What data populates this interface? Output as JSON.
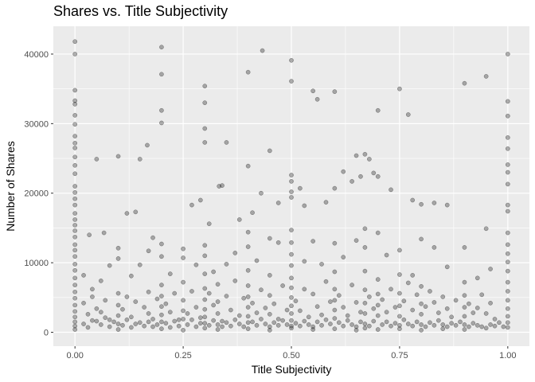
{
  "chart_data": {
    "type": "scatter",
    "title": "Shares vs. Title Subjectivity",
    "xlabel": "Title Subjectivity",
    "ylabel": "Number of Shares",
    "xlim": [
      -0.05,
      1.05
    ],
    "ylim": [
      -2000,
      44000
    ],
    "x_ticks": [
      0,
      0.25,
      0.5,
      0.75,
      1
    ],
    "x_tick_labels": [
      "0.00",
      "0.25",
      "0.50",
      "0.75",
      "1.00"
    ],
    "y_ticks": [
      0,
      10000,
      20000,
      30000,
      40000
    ],
    "y_tick_labels": [
      "0",
      "10000",
      "20000",
      "30000",
      "40000"
    ],
    "grid": true,
    "point_color": "#000000",
    "point_opacity": 0.3,
    "panel_color": "#ebebeb",
    "grid_color": "#ffffff",
    "points": [
      [
        0,
        41800
      ],
      [
        0,
        40000
      ],
      [
        0,
        34800
      ],
      [
        0,
        33300
      ],
      [
        0,
        32800
      ],
      [
        0,
        31200
      ],
      [
        0,
        29900
      ],
      [
        0,
        28200
      ],
      [
        0,
        27200
      ],
      [
        0,
        26500
      ],
      [
        0,
        25200
      ],
      [
        0,
        24000
      ],
      [
        0,
        22800
      ],
      [
        0,
        21000
      ],
      [
        0,
        20100
      ],
      [
        0,
        19200
      ],
      [
        0,
        18300
      ],
      [
        0,
        17100
      ],
      [
        0,
        16200
      ],
      [
        0,
        15400
      ],
      [
        0,
        14600
      ],
      [
        0,
        13700
      ],
      [
        0,
        12600
      ],
      [
        0,
        11800
      ],
      [
        0,
        10900
      ],
      [
        0,
        9800
      ],
      [
        0,
        8900
      ],
      [
        0,
        7800
      ],
      [
        0,
        6800
      ],
      [
        0,
        5800
      ],
      [
        0,
        4900
      ],
      [
        0,
        3900
      ],
      [
        0,
        3000
      ],
      [
        0,
        2200
      ],
      [
        0,
        1500
      ],
      [
        0,
        900
      ],
      [
        0,
        400
      ],
      [
        0.05,
        24900
      ],
      [
        0.1,
        25300
      ],
      [
        0.15,
        24900
      ],
      [
        0.167,
        26900
      ],
      [
        0.2,
        41000
      ],
      [
        0.2,
        37100
      ],
      [
        0.2,
        31900
      ],
      [
        0.2,
        30100
      ],
      [
        0.3,
        35400
      ],
      [
        0.3,
        33000
      ],
      [
        0.3,
        29300
      ],
      [
        0.3,
        27300
      ],
      [
        0.333,
        21000
      ],
      [
        0.35,
        27300
      ],
      [
        0.4,
        37400
      ],
      [
        0.433,
        40500
      ],
      [
        0.45,
        26100
      ],
      [
        0.4,
        23900
      ],
      [
        0.5,
        39100
      ],
      [
        0.5,
        36100
      ],
      [
        0.5,
        22600
      ],
      [
        0.5,
        21700
      ],
      [
        0.55,
        34700
      ],
      [
        0.56,
        33500
      ],
      [
        0.6,
        34600
      ],
      [
        0.65,
        25400
      ],
      [
        0.67,
        25600
      ],
      [
        0.68,
        24900
      ],
      [
        0.7,
        31900
      ],
      [
        0.75,
        35000
      ],
      [
        0.77,
        31300
      ],
      [
        0.9,
        35800
      ],
      [
        0.95,
        36800
      ],
      [
        1,
        40000
      ],
      [
        1,
        33200
      ],
      [
        1,
        31100
      ],
      [
        1,
        28000
      ],
      [
        1,
        26400
      ],
      [
        1,
        24100
      ],
      [
        1,
        23000
      ],
      [
        1,
        21300
      ],
      [
        1,
        18300
      ],
      [
        1,
        17400
      ],
      [
        1,
        14300
      ],
      [
        1,
        12600
      ],
      [
        1,
        11300
      ],
      [
        1,
        10100
      ],
      [
        1,
        8800
      ],
      [
        1,
        7200
      ],
      [
        1,
        5900
      ],
      [
        1,
        4600
      ],
      [
        1,
        3400
      ],
      [
        1,
        2300
      ],
      [
        1,
        1400
      ],
      [
        1,
        700
      ],
      [
        0.033,
        14000
      ],
      [
        0.067,
        14300
      ],
      [
        0.12,
        17100
      ],
      [
        0.14,
        17300
      ],
      [
        0.18,
        13600
      ],
      [
        0.25,
        12000
      ],
      [
        0.27,
        18300
      ],
      [
        0.29,
        19000
      ],
      [
        0.31,
        15600
      ],
      [
        0.34,
        21100
      ],
      [
        0.38,
        16200
      ],
      [
        0.41,
        17200
      ],
      [
        0.43,
        20000
      ],
      [
        0.47,
        18600
      ],
      [
        0.5,
        20200
      ],
      [
        0.5,
        19400
      ],
      [
        0.52,
        20700
      ],
      [
        0.53,
        18200
      ],
      [
        0.58,
        18700
      ],
      [
        0.6,
        20700
      ],
      [
        0.62,
        23100
      ],
      [
        0.64,
        21700
      ],
      [
        0.66,
        22400
      ],
      [
        0.69,
        22900
      ],
      [
        0.7,
        22400
      ],
      [
        0.73,
        20500
      ],
      [
        0.78,
        19000
      ],
      [
        0.8,
        18400
      ],
      [
        0.83,
        18600
      ],
      [
        0.86,
        18300
      ],
      [
        0.95,
        14900
      ],
      [
        0.02,
        8200
      ],
      [
        0.04,
        6200
      ],
      [
        0.06,
        7400
      ],
      [
        0.08,
        9600
      ],
      [
        0.1,
        12100
      ],
      [
        0.1,
        10600
      ],
      [
        0.13,
        8100
      ],
      [
        0.15,
        9700
      ],
      [
        0.17,
        11700
      ],
      [
        0.2,
        12700
      ],
      [
        0.2,
        10900
      ],
      [
        0.22,
        8400
      ],
      [
        0.25,
        10700
      ],
      [
        0.28,
        9700
      ],
      [
        0.3,
        12500
      ],
      [
        0.3,
        11000
      ],
      [
        0.32,
        8700
      ],
      [
        0.35,
        9800
      ],
      [
        0.37,
        11400
      ],
      [
        0.4,
        14400
      ],
      [
        0.4,
        12300
      ],
      [
        0.42,
        10300
      ],
      [
        0.45,
        13500
      ],
      [
        0.47,
        12900
      ],
      [
        0.5,
        14700
      ],
      [
        0.5,
        12900
      ],
      [
        0.5,
        11200
      ],
      [
        0.53,
        10200
      ],
      [
        0.55,
        13100
      ],
      [
        0.57,
        9800
      ],
      [
        0.6,
        12800
      ],
      [
        0.62,
        10800
      ],
      [
        0.65,
        13200
      ],
      [
        0.67,
        14900
      ],
      [
        0.67,
        12200
      ],
      [
        0.7,
        14300
      ],
      [
        0.72,
        11100
      ],
      [
        0.75,
        11800
      ],
      [
        0.78,
        8200
      ],
      [
        0.8,
        13400
      ],
      [
        0.83,
        12200
      ],
      [
        0.86,
        9400
      ],
      [
        0.9,
        12200
      ],
      [
        0.93,
        7800
      ],
      [
        0.96,
        9100
      ],
      [
        0.02,
        4200
      ],
      [
        0.03,
        2600
      ],
      [
        0.04,
        5100
      ],
      [
        0.05,
        3400
      ],
      [
        0.05,
        1600
      ],
      [
        0.06,
        2900
      ],
      [
        0.07,
        4600
      ],
      [
        0.08,
        1800
      ],
      [
        0.1,
        5600
      ],
      [
        0.1,
        3900
      ],
      [
        0.1,
        2400
      ],
      [
        0.1,
        1200
      ],
      [
        0.11,
        3300
      ],
      [
        0.12,
        5100
      ],
      [
        0.13,
        2200
      ],
      [
        0.14,
        4400
      ],
      [
        0.15,
        1400
      ],
      [
        0.16,
        3600
      ],
      [
        0.17,
        5800
      ],
      [
        0.17,
        2700
      ],
      [
        0.18,
        1900
      ],
      [
        0.19,
        4800
      ],
      [
        0.2,
        6800
      ],
      [
        0.2,
        5200
      ],
      [
        0.2,
        3700
      ],
      [
        0.2,
        2500
      ],
      [
        0.2,
        1500
      ],
      [
        0.21,
        4100
      ],
      [
        0.22,
        2900
      ],
      [
        0.23,
        5600
      ],
      [
        0.24,
        1800
      ],
      [
        0.25,
        7200
      ],
      [
        0.25,
        4600
      ],
      [
        0.25,
        3100
      ],
      [
        0.25,
        1900
      ],
      [
        0.26,
        2700
      ],
      [
        0.27,
        5900
      ],
      [
        0.28,
        3600
      ],
      [
        0.29,
        2100
      ],
      [
        0.3,
        8400
      ],
      [
        0.3,
        6300
      ],
      [
        0.3,
        4700
      ],
      [
        0.3,
        3300
      ],
      [
        0.3,
        2200
      ],
      [
        0.3,
        1300
      ],
      [
        0.31,
        5600
      ],
      [
        0.32,
        3900
      ],
      [
        0.33,
        6900
      ],
      [
        0.33,
        4400
      ],
      [
        0.33,
        2700
      ],
      [
        0.34,
        1600
      ],
      [
        0.35,
        5200
      ],
      [
        0.36,
        3200
      ],
      [
        0.37,
        7400
      ],
      [
        0.38,
        2400
      ],
      [
        0.39,
        4900
      ],
      [
        0.4,
        8900
      ],
      [
        0.4,
        6700
      ],
      [
        0.4,
        5100
      ],
      [
        0.4,
        3600
      ],
      [
        0.4,
        2300
      ],
      [
        0.4,
        1400
      ],
      [
        0.41,
        4200
      ],
      [
        0.42,
        2800
      ],
      [
        0.43,
        6100
      ],
      [
        0.44,
        3500
      ],
      [
        0.45,
        8200
      ],
      [
        0.45,
        5300
      ],
      [
        0.45,
        2600
      ],
      [
        0.46,
        4100
      ],
      [
        0.47,
        1900
      ],
      [
        0.48,
        6700
      ],
      [
        0.49,
        3200
      ],
      [
        0.5,
        9600
      ],
      [
        0.5,
        7800
      ],
      [
        0.5,
        6400
      ],
      [
        0.5,
        5000
      ],
      [
        0.5,
        3800
      ],
      [
        0.5,
        2700
      ],
      [
        0.5,
        1700
      ],
      [
        0.5,
        900
      ],
      [
        0.51,
        4500
      ],
      [
        0.52,
        3100
      ],
      [
        0.53,
        6200
      ],
      [
        0.54,
        2200
      ],
      [
        0.55,
        5500
      ],
      [
        0.56,
        3700
      ],
      [
        0.57,
        2500
      ],
      [
        0.58,
        7300
      ],
      [
        0.59,
        4400
      ],
      [
        0.6,
        8700
      ],
      [
        0.6,
        6200
      ],
      [
        0.6,
        4600
      ],
      [
        0.6,
        3200
      ],
      [
        0.6,
        2000
      ],
      [
        0.61,
        5300
      ],
      [
        0.62,
        3600
      ],
      [
        0.63,
        2400
      ],
      [
        0.64,
        6800
      ],
      [
        0.65,
        4300
      ],
      [
        0.66,
        2900
      ],
      [
        0.67,
        8800
      ],
      [
        0.67,
        6100
      ],
      [
        0.67,
        4200
      ],
      [
        0.67,
        2700
      ],
      [
        0.68,
        5100
      ],
      [
        0.69,
        3400
      ],
      [
        0.7,
        7600
      ],
      [
        0.7,
        5500
      ],
      [
        0.7,
        3900
      ],
      [
        0.7,
        2400
      ],
      [
        0.71,
        4700
      ],
      [
        0.72,
        2900
      ],
      [
        0.73,
        6200
      ],
      [
        0.74,
        3600
      ],
      [
        0.75,
        8300
      ],
      [
        0.75,
        5600
      ],
      [
        0.75,
        3800
      ],
      [
        0.75,
        2300
      ],
      [
        0.76,
        4500
      ],
      [
        0.77,
        7100
      ],
      [
        0.78,
        3200
      ],
      [
        0.79,
        5400
      ],
      [
        0.8,
        6600
      ],
      [
        0.8,
        4100
      ],
      [
        0.8,
        2600
      ],
      [
        0.81,
        3700
      ],
      [
        0.82,
        5900
      ],
      [
        0.83,
        4300
      ],
      [
        0.84,
        2800
      ],
      [
        0.85,
        5100
      ],
      [
        0.86,
        3400
      ],
      [
        0.87,
        2200
      ],
      [
        0.88,
        4600
      ],
      [
        0.9,
        7200
      ],
      [
        0.9,
        5300
      ],
      [
        0.9,
        3600
      ],
      [
        0.9,
        2300
      ],
      [
        0.91,
        4100
      ],
      [
        0.92,
        2800
      ],
      [
        0.93,
        3500
      ],
      [
        0.94,
        5400
      ],
      [
        0.95,
        2700
      ],
      [
        0.96,
        4200
      ],
      [
        0.97,
        1900
      ],
      [
        0.02,
        1200
      ],
      [
        0.03,
        700
      ],
      [
        0.04,
        1700
      ],
      [
        0.06,
        1100
      ],
      [
        0.07,
        2100
      ],
      [
        0.08,
        800
      ],
      [
        0.09,
        1500
      ],
      [
        0.11,
        1000
      ],
      [
        0.12,
        1800
      ],
      [
        0.13,
        700
      ],
      [
        0.14,
        1200
      ],
      [
        0.16,
        900
      ],
      [
        0.17,
        1500
      ],
      [
        0.18,
        800
      ],
      [
        0.19,
        1100
      ],
      [
        0.21,
        1300
      ],
      [
        0.22,
        700
      ],
      [
        0.23,
        1600
      ],
      [
        0.24,
        900
      ],
      [
        0.26,
        1100
      ],
      [
        0.27,
        1800
      ],
      [
        0.28,
        800
      ],
      [
        0.29,
        1300
      ],
      [
        0.31,
        1000
      ],
      [
        0.32,
        1700
      ],
      [
        0.33,
        1100
      ],
      [
        0.34,
        800
      ],
      [
        0.35,
        1400
      ],
      [
        0.36,
        900
      ],
      [
        0.37,
        1800
      ],
      [
        0.38,
        1200
      ],
      [
        0.39,
        800
      ],
      [
        0.41,
        1500
      ],
      [
        0.42,
        1000
      ],
      [
        0.43,
        1900
      ],
      [
        0.44,
        1200
      ],
      [
        0.45,
        800
      ],
      [
        0.46,
        1400
      ],
      [
        0.47,
        1000
      ],
      [
        0.48,
        1700
      ],
      [
        0.49,
        1100
      ],
      [
        0.51,
        1300
      ],
      [
        0.52,
        900
      ],
      [
        0.53,
        1600
      ],
      [
        0.54,
        1100
      ],
      [
        0.55,
        800
      ],
      [
        0.56,
        1500
      ],
      [
        0.57,
        1000
      ],
      [
        0.58,
        1800
      ],
      [
        0.59,
        1200
      ],
      [
        0.61,
        1400
      ],
      [
        0.62,
        900
      ],
      [
        0.63,
        1700
      ],
      [
        0.64,
        1100
      ],
      [
        0.65,
        800
      ],
      [
        0.66,
        1500
      ],
      [
        0.67,
        1200
      ],
      [
        0.68,
        900
      ],
      [
        0.69,
        1600
      ],
      [
        0.71,
        1100
      ],
      [
        0.72,
        1500
      ],
      [
        0.73,
        900
      ],
      [
        0.74,
        1300
      ],
      [
        0.75,
        1000
      ],
      [
        0.76,
        1800
      ],
      [
        0.77,
        1200
      ],
      [
        0.78,
        900
      ],
      [
        0.79,
        1500
      ],
      [
        0.8,
        1100
      ],
      [
        0.81,
        800
      ],
      [
        0.82,
        1400
      ],
      [
        0.83,
        1000
      ],
      [
        0.84,
        1700
      ],
      [
        0.85,
        1100
      ],
      [
        0.86,
        800
      ],
      [
        0.87,
        1300
      ],
      [
        0.88,
        1000
      ],
      [
        0.89,
        1500
      ],
      [
        0.9,
        1100
      ],
      [
        0.91,
        800
      ],
      [
        0.92,
        1300
      ],
      [
        0.93,
        1000
      ],
      [
        0.94,
        800
      ],
      [
        0.96,
        1100
      ],
      [
        0.97,
        900
      ],
      [
        0.98,
        1400
      ],
      [
        0.99,
        800
      ],
      [
        0.1,
        400
      ],
      [
        0.2,
        500
      ],
      [
        0.25,
        300
      ],
      [
        0.3,
        600
      ],
      [
        0.33,
        400
      ],
      [
        0.4,
        500
      ],
      [
        0.45,
        300
      ],
      [
        0.5,
        600
      ],
      [
        0.55,
        400
      ],
      [
        0.6,
        500
      ],
      [
        0.65,
        300
      ],
      [
        0.67,
        600
      ],
      [
        0.7,
        400
      ],
      [
        0.75,
        500
      ],
      [
        0.8,
        300
      ],
      [
        0.85,
        500
      ],
      [
        0.9,
        400
      ],
      [
        0.95,
        600
      ]
    ]
  }
}
